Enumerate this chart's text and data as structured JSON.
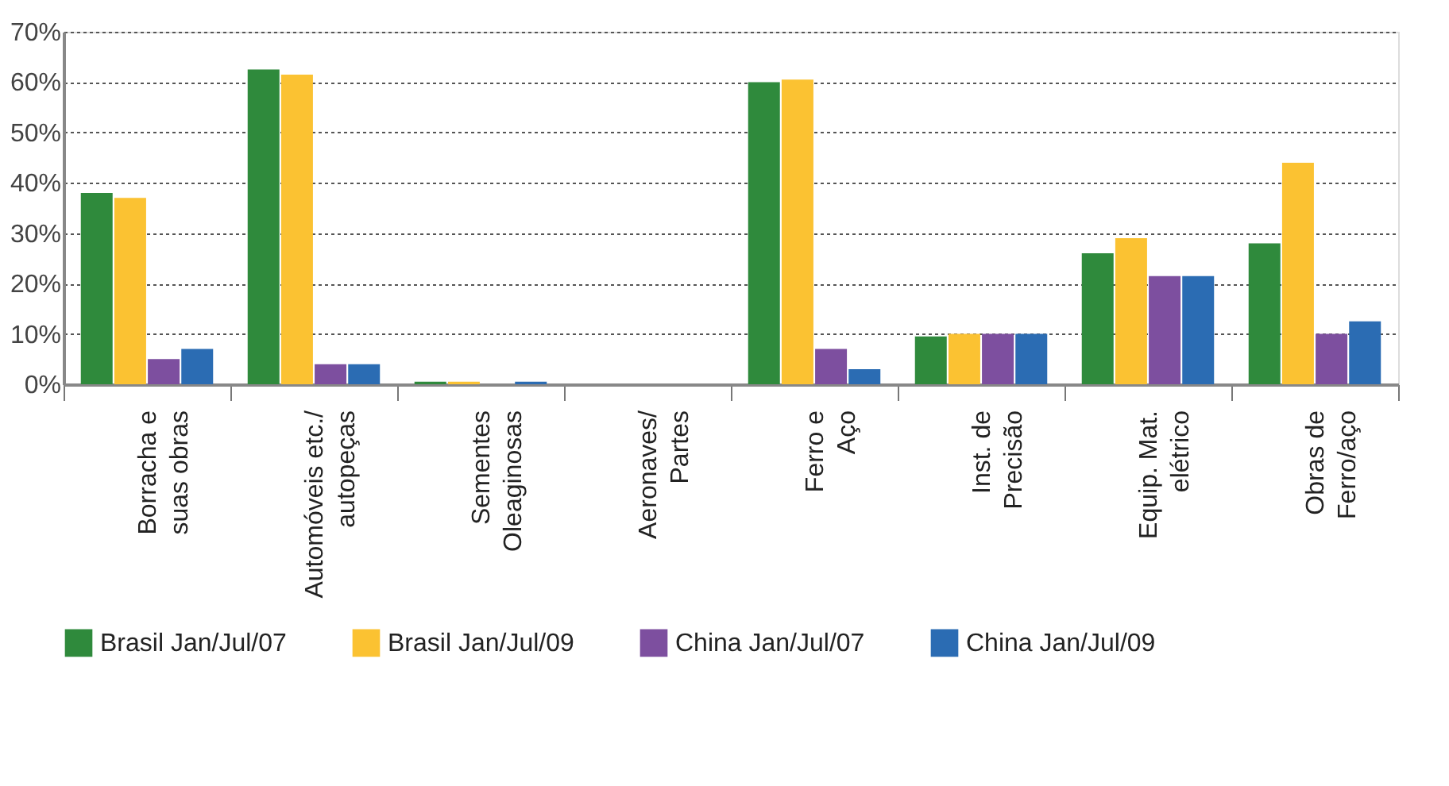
{
  "chart_data": {
    "type": "bar",
    "categories": [
      "Borracha e\nsuas obras",
      "Automóveis etc./\nautopeças",
      "Sementes\nOleaginosas",
      "Aeronaves/\nPartes",
      "Ferro e\nAço",
      "Inst. de\nPrecisão",
      "Equip. Mat.\nelétrico",
      "Obras de\nFerro/aço"
    ],
    "series": [
      {
        "name": "Brasil Jan/Jul/07",
        "color": "#2f8a3c",
        "values": [
          38,
          62.5,
          0.5,
          0,
          60,
          9.5,
          26,
          28
        ]
      },
      {
        "name": "Brasil Jan/Jul/09",
        "color": "#fbc232",
        "values": [
          37,
          61.5,
          0.5,
          0,
          60.5,
          10,
          29,
          44
        ]
      },
      {
        "name": "China Jan/Jul/07",
        "color": "#7d4f9f",
        "values": [
          5,
          4,
          0,
          0,
          7,
          10,
          21.5,
          10
        ]
      },
      {
        "name": "China Jan/Jul/09",
        "color": "#2b6cb3",
        "values": [
          7,
          4,
          0.5,
          0,
          3,
          10,
          21.5,
          12.5
        ]
      }
    ],
    "ylim": [
      0,
      70
    ],
    "yticks": [
      {
        "value": 0,
        "label": "0%"
      },
      {
        "value": 10,
        "label": "10%"
      },
      {
        "value": 20,
        "label": "20%"
      },
      {
        "value": 30,
        "label": "30%"
      },
      {
        "value": 40,
        "label": "40%"
      },
      {
        "value": 50,
        "label": "50%"
      },
      {
        "value": 60,
        "label": "60%"
      },
      {
        "value": 70,
        "label": "70%"
      }
    ],
    "grid": "y",
    "legend": "bottom"
  }
}
